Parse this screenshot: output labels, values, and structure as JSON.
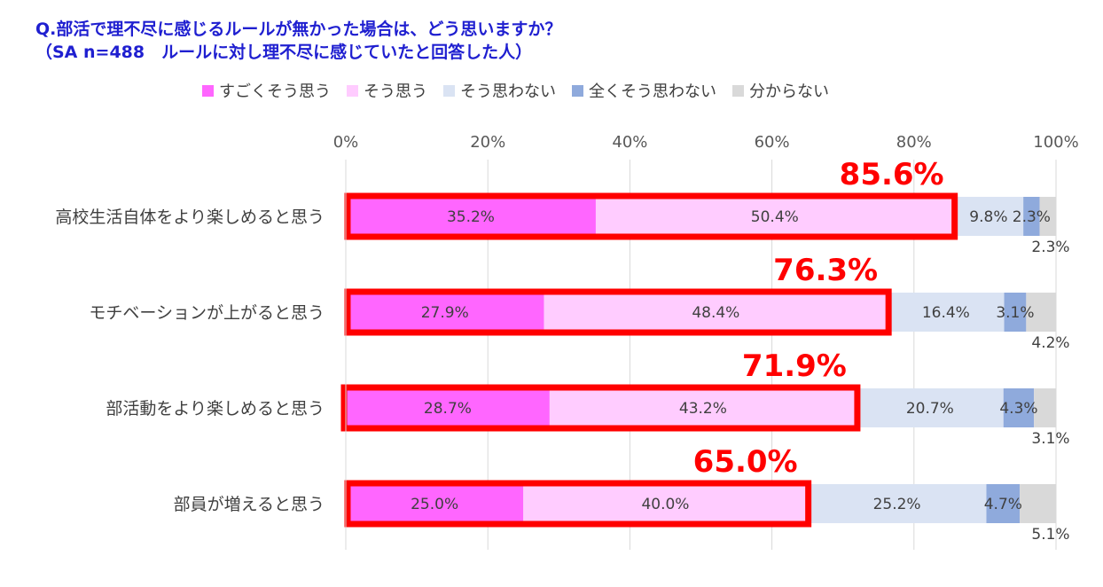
{
  "title": {
    "line1": "Q.部活で理不尽に感じるルールが無かった場合は、どう思いますか？",
    "line2": "（SA n=488　ルールに対し理不尽に感じていたと回答した人）"
  },
  "chart_data": {
    "type": "bar",
    "orientation": "horizontal",
    "stacked": true,
    "categories": [
      "高校生活自体をより楽しめると思う",
      "モチベーションが上がると思う",
      "部活動をより楽しめると思う",
      "部員が増えると思う"
    ],
    "series": [
      {
        "name": "すごくそう思う",
        "color": "#ff66ff",
        "values": [
          35.2,
          27.9,
          28.7,
          25.0
        ],
        "labels": [
          "35.2%",
          "27.9%",
          "28.7%",
          "25.0%"
        ]
      },
      {
        "name": "そう思う",
        "color": "#ffccff",
        "values": [
          50.4,
          48.4,
          43.2,
          40.0
        ],
        "labels": [
          "50.4%",
          "48.4%",
          "43.2%",
          "40.0%"
        ]
      },
      {
        "name": "そう思わない",
        "color": "#dae3f3",
        "values": [
          9.8,
          16.4,
          20.7,
          25.2
        ],
        "labels": [
          "9.8%",
          "16.4%",
          "20.7%",
          "25.2%"
        ]
      },
      {
        "name": "全くそう思わない",
        "color": "#8faadc",
        "values": [
          2.3,
          3.1,
          4.3,
          4.7
        ],
        "labels": [
          "2.3%",
          "3.1%",
          "4.3%",
          "4.7%"
        ]
      },
      {
        "name": "分からない",
        "color": "#d9d9d9",
        "values": [
          2.3,
          4.2,
          3.1,
          5.1
        ],
        "labels": [
          "2.3%",
          "4.2%",
          "3.1%",
          "5.1%"
        ]
      }
    ],
    "highlight_totals": [
      "85.6%",
      "76.3%",
      "71.9%",
      "65.0%"
    ],
    "highlight_color": "#ff0000",
    "xlim": [
      0,
      100
    ],
    "x_ticks": [
      "0%",
      "20%",
      "40%",
      "60%",
      "80%",
      "100%"
    ],
    "grid": true,
    "legend_position": "top"
  }
}
